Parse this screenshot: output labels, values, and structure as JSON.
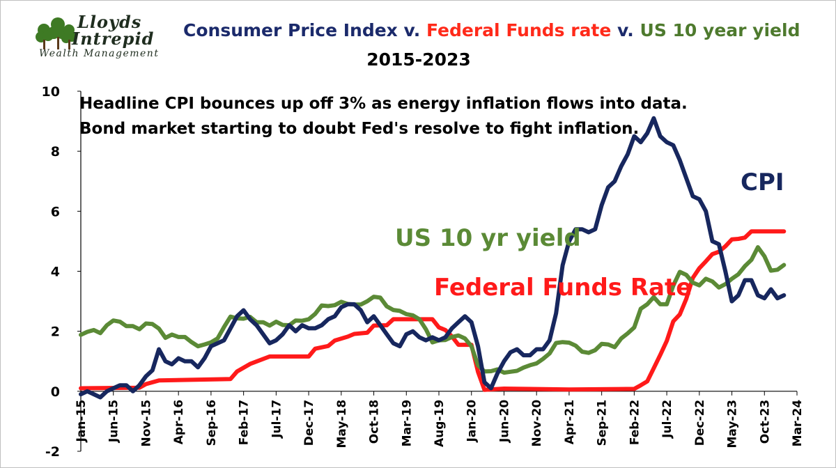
{
  "brand": {
    "line1": "Lloyds",
    "line2": "Intrepid",
    "line3": "Wealth Management"
  },
  "title": {
    "part_cpi": "Consumer Price Index",
    "sep1": " v. ",
    "part_ffr": "Federal Funds rate",
    "sep2": " v. ",
    "part_us10": "US 10 year yield"
  },
  "subtitle": "2015-2023",
  "note": "Headline CPI bounces up off 3% as energy inflation flows into data. Bond market starting to doubt Fed's resolve to fight inflation.",
  "colors": {
    "cpi": "#17275e",
    "ffr": "#ff1a1a",
    "us10": "#5b8a36",
    "axis": "#000000"
  },
  "chart_data": {
    "type": "line",
    "title": "Consumer Price Index v. Federal Funds rate v. US 10 year yield 2015-2023",
    "ylim": [
      -2,
      10
    ],
    "yticks": [
      -2,
      0,
      2,
      4,
      6,
      8,
      10
    ],
    "xlim": [
      0,
      110
    ],
    "x_tick_labels": [
      "Jan-15",
      "Jun-15",
      "Nov-15",
      "Apr-16",
      "Sep-16",
      "Feb-17",
      "Jul-17",
      "Dec-17",
      "May-18",
      "Oct-18",
      "Mar-19",
      "Aug-19",
      "Jan-20",
      "Jun-20",
      "Nov-20",
      "Apr-21",
      "Sep-21",
      "Feb-22",
      "Jul-22",
      "Dec-22",
      "May-23",
      "Oct-23",
      "Mar-24"
    ],
    "x_tick_step_months": 5,
    "annotations": [
      {
        "text": "CPI",
        "series": "CPI"
      },
      {
        "text": "US 10 yr yield",
        "series": "US 10 yr yield"
      },
      {
        "text": "Federal Funds Rate",
        "series": "Federal Funds Rate"
      }
    ],
    "series": [
      {
        "name": "CPI",
        "color_key": "cpi",
        "points": [
          [
            0,
            -0.1
          ],
          [
            1,
            0
          ],
          [
            2,
            -0.1
          ],
          [
            3,
            -0.2
          ],
          [
            4,
            0
          ],
          [
            5,
            0.1
          ],
          [
            6,
            0.2
          ],
          [
            7,
            0.2
          ],
          [
            8,
            0
          ],
          [
            9,
            0.2
          ],
          [
            10,
            0.5
          ],
          [
            11,
            0.7
          ],
          [
            12,
            1.4
          ],
          [
            13,
            1
          ],
          [
            14,
            0.9
          ],
          [
            15,
            1.1
          ],
          [
            16,
            1
          ],
          [
            17,
            1
          ],
          [
            18,
            0.8
          ],
          [
            19,
            1.1
          ],
          [
            20,
            1.5
          ],
          [
            21,
            1.6
          ],
          [
            22,
            1.7
          ],
          [
            23,
            2.1
          ],
          [
            24,
            2.5
          ],
          [
            25,
            2.7
          ],
          [
            26,
            2.4
          ],
          [
            27,
            2.2
          ],
          [
            28,
            1.9
          ],
          [
            29,
            1.6
          ],
          [
            30,
            1.7
          ],
          [
            31,
            1.9
          ],
          [
            32,
            2.2
          ],
          [
            33,
            2
          ],
          [
            34,
            2.2
          ],
          [
            35,
            2.1
          ],
          [
            36,
            2.1
          ],
          [
            37,
            2.2
          ],
          [
            38,
            2.4
          ],
          [
            39,
            2.5
          ],
          [
            40,
            2.8
          ],
          [
            41,
            2.9
          ],
          [
            42,
            2.9
          ],
          [
            43,
            2.7
          ],
          [
            44,
            2.3
          ],
          [
            45,
            2.5
          ],
          [
            46,
            2.2
          ],
          [
            47,
            1.9
          ],
          [
            48,
            1.6
          ],
          [
            49,
            1.5
          ],
          [
            50,
            1.9
          ],
          [
            51,
            2
          ],
          [
            52,
            1.8
          ],
          [
            53,
            1.7
          ],
          [
            54,
            1.8
          ],
          [
            55,
            1.7
          ],
          [
            56,
            1.8
          ],
          [
            57,
            2.1
          ],
          [
            58,
            2.3
          ],
          [
            59,
            2.5
          ],
          [
            60,
            2.3
          ],
          [
            61,
            1.5
          ],
          [
            62,
            0.3
          ],
          [
            63,
            0.1
          ],
          [
            64,
            0.6
          ],
          [
            65,
            1
          ],
          [
            66,
            1.3
          ],
          [
            67,
            1.4
          ],
          [
            68,
            1.2
          ],
          [
            69,
            1.2
          ],
          [
            70,
            1.4
          ],
          [
            71,
            1.4
          ],
          [
            72,
            1.7
          ],
          [
            73,
            2.6
          ],
          [
            74,
            4.2
          ],
          [
            75,
            5
          ],
          [
            76,
            5.4
          ],
          [
            77,
            5.4
          ],
          [
            78,
            5.3
          ],
          [
            79,
            5.4
          ],
          [
            80,
            6.2
          ],
          [
            81,
            6.8
          ],
          [
            82,
            7
          ],
          [
            83,
            7.5
          ],
          [
            84,
            7.9
          ],
          [
            85,
            8.5
          ],
          [
            86,
            8.3
          ],
          [
            87,
            8.6
          ],
          [
            88,
            9.1
          ],
          [
            89,
            8.5
          ],
          [
            90,
            8.3
          ],
          [
            91,
            8.2
          ],
          [
            92,
            7.7
          ],
          [
            93,
            7.1
          ],
          [
            94,
            6.5
          ],
          [
            95,
            6.4
          ],
          [
            96,
            6
          ],
          [
            97,
            5
          ],
          [
            98,
            4.9
          ],
          [
            99,
            4
          ],
          [
            100,
            3
          ],
          [
            101,
            3.2
          ],
          [
            102,
            3.7
          ],
          [
            103,
            3.7
          ],
          [
            104,
            3.2
          ],
          [
            105,
            3.1
          ],
          [
            106,
            3.4
          ],
          [
            107,
            3.1
          ],
          [
            108,
            3.2
          ]
        ]
      },
      {
        "name": "Federal Funds Rate",
        "color_key": "ffr",
        "points": [
          [
            0,
            0.1
          ],
          [
            9,
            0.12
          ],
          [
            10,
            0.24
          ],
          [
            12,
            0.36
          ],
          [
            21,
            0.4
          ],
          [
            23,
            0.41
          ],
          [
            24,
            0.66
          ],
          [
            26,
            0.91
          ],
          [
            29,
            1.16
          ],
          [
            35,
            1.16
          ],
          [
            36,
            1.42
          ],
          [
            38,
            1.51
          ],
          [
            39,
            1.69
          ],
          [
            41,
            1.82
          ],
          [
            42,
            1.91
          ],
          [
            44,
            1.95
          ],
          [
            45,
            2.19
          ],
          [
            47,
            2.2
          ],
          [
            48,
            2.4
          ],
          [
            54,
            2.4
          ],
          [
            55,
            2.13
          ],
          [
            56,
            2.04
          ],
          [
            57,
            1.83
          ],
          [
            58,
            1.55
          ],
          [
            60,
            1.55
          ],
          [
            61,
            0.65
          ],
          [
            62,
            0.05
          ],
          [
            65,
            0.09
          ],
          [
            75,
            0.06
          ],
          [
            85,
            0.08
          ],
          [
            86,
            0.2
          ],
          [
            87,
            0.33
          ],
          [
            88,
            0.77
          ],
          [
            89,
            1.21
          ],
          [
            90,
            1.68
          ],
          [
            91,
            2.33
          ],
          [
            92,
            2.56
          ],
          [
            93,
            3.08
          ],
          [
            94,
            3.78
          ],
          [
            95,
            4.1
          ],
          [
            96,
            4.33
          ],
          [
            97,
            4.57
          ],
          [
            98,
            4.65
          ],
          [
            99,
            4.83
          ],
          [
            100,
            5.06
          ],
          [
            101,
            5.08
          ],
          [
            102,
            5.12
          ],
          [
            103,
            5.33
          ],
          [
            108,
            5.33
          ]
        ]
      },
      {
        "name": "US 10 yr yield",
        "color_key": "us10",
        "points": [
          [
            0,
            1.88
          ],
          [
            1,
            1.98
          ],
          [
            2,
            2.04
          ],
          [
            3,
            1.94
          ],
          [
            4,
            2.2
          ],
          [
            5,
            2.36
          ],
          [
            6,
            2.32
          ],
          [
            7,
            2.17
          ],
          [
            8,
            2.17
          ],
          [
            9,
            2.07
          ],
          [
            10,
            2.26
          ],
          [
            11,
            2.24
          ],
          [
            12,
            2.09
          ],
          [
            13,
            1.78
          ],
          [
            14,
            1.89
          ],
          [
            15,
            1.81
          ],
          [
            16,
            1.81
          ],
          [
            17,
            1.64
          ],
          [
            18,
            1.5
          ],
          [
            19,
            1.56
          ],
          [
            20,
            1.63
          ],
          [
            21,
            1.76
          ],
          [
            22,
            2.14
          ],
          [
            23,
            2.49
          ],
          [
            24,
            2.43
          ],
          [
            25,
            2.42
          ],
          [
            26,
            2.48
          ],
          [
            27,
            2.3
          ],
          [
            28,
            2.3
          ],
          [
            29,
            2.19
          ],
          [
            30,
            2.32
          ],
          [
            31,
            2.21
          ],
          [
            32,
            2.2
          ],
          [
            33,
            2.36
          ],
          [
            34,
            2.35
          ],
          [
            35,
            2.4
          ],
          [
            36,
            2.58
          ],
          [
            37,
            2.86
          ],
          [
            38,
            2.84
          ],
          [
            39,
            2.87
          ],
          [
            40,
            2.98
          ],
          [
            41,
            2.91
          ],
          [
            42,
            2.89
          ],
          [
            43,
            2.89
          ],
          [
            44,
            3
          ],
          [
            45,
            3.15
          ],
          [
            46,
            3.12
          ],
          [
            47,
            2.83
          ],
          [
            48,
            2.71
          ],
          [
            49,
            2.68
          ],
          [
            50,
            2.57
          ],
          [
            51,
            2.53
          ],
          [
            52,
            2.4
          ],
          [
            53,
            2.07
          ],
          [
            54,
            1.63
          ],
          [
            55,
            1.7
          ],
          [
            56,
            1.71
          ],
          [
            57,
            1.81
          ],
          [
            58,
            1.86
          ],
          [
            59,
            1.76
          ],
          [
            60,
            1.5
          ],
          [
            61,
            0.87
          ],
          [
            62,
            0.66
          ],
          [
            63,
            0.67
          ],
          [
            64,
            0.73
          ],
          [
            65,
            0.62
          ],
          [
            66,
            0.65
          ],
          [
            67,
            0.68
          ],
          [
            68,
            0.79
          ],
          [
            69,
            0.87
          ],
          [
            70,
            0.93
          ],
          [
            71,
            1.08
          ],
          [
            72,
            1.26
          ],
          [
            73,
            1.61
          ],
          [
            74,
            1.64
          ],
          [
            75,
            1.62
          ],
          [
            76,
            1.52
          ],
          [
            77,
            1.32
          ],
          [
            78,
            1.28
          ],
          [
            79,
            1.37
          ],
          [
            80,
            1.58
          ],
          [
            81,
            1.56
          ],
          [
            82,
            1.47
          ],
          [
            83,
            1.76
          ],
          [
            84,
            1.93
          ],
          [
            85,
            2.13
          ],
          [
            86,
            2.75
          ],
          [
            87,
            2.9
          ],
          [
            88,
            3.14
          ],
          [
            89,
            2.9
          ],
          [
            90,
            2.9
          ],
          [
            91,
            3.52
          ],
          [
            92,
            3.98
          ],
          [
            93,
            3.88
          ],
          [
            94,
            3.62
          ],
          [
            95,
            3.53
          ],
          [
            96,
            3.75
          ],
          [
            97,
            3.66
          ],
          [
            98,
            3.46
          ],
          [
            99,
            3.57
          ],
          [
            100,
            3.75
          ],
          [
            101,
            3.9
          ],
          [
            102,
            4.17
          ],
          [
            103,
            4.38
          ],
          [
            104,
            4.8
          ],
          [
            105,
            4.5
          ],
          [
            106,
            4.02
          ],
          [
            107,
            4.05
          ],
          [
            108,
            4.21
          ]
        ]
      }
    ]
  }
}
